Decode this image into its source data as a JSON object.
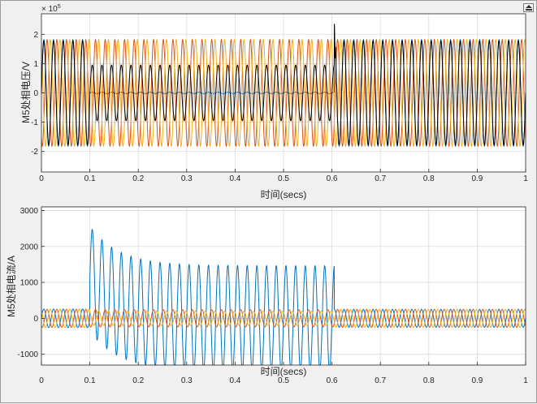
{
  "window": {
    "dock_icon": "dock-arrow-icon"
  },
  "chart_data": [
    {
      "type": "line",
      "title": "",
      "xlabel": "时间(secs)",
      "ylabel": "M5处相电压/V",
      "exponent_label": "×10^5",
      "exponent_base": "× 10",
      "exponent_power": "5",
      "xlim": [
        0,
        1
      ],
      "ylim": [
        -2.7,
        2.7
      ],
      "xticks": [
        0,
        0.1,
        0.2,
        0.3,
        0.4,
        0.5,
        0.6,
        0.7,
        0.8,
        0.9,
        1
      ],
      "yticks": [
        -2,
        -1,
        0,
        1,
        2
      ],
      "grid": true,
      "frequency_hz": 50,
      "fault_start": 0.1,
      "fault_clear": 0.605,
      "series": [
        {
          "color": "#0072bd",
          "phase_deg": 0,
          "amplitude_before": 1.82,
          "amplitude_during": 0.03,
          "amplitude_after": 1.82
        },
        {
          "color": "#d95319",
          "phase_deg": -120,
          "amplitude_before": 1.82,
          "amplitude_during": 1.82,
          "amplitude_after": 1.82
        },
        {
          "color": "#edb120",
          "phase_deg": 120,
          "amplitude_before": 1.82,
          "amplitude_during": 1.82,
          "amplitude_after": 1.82
        },
        {
          "color": "#000000",
          "phase_deg": 0,
          "amplitude_before": 1.78,
          "amplitude_during": 0.95,
          "amplitude_after": 1.78
        }
      ],
      "annotations": {
        "transient_peak": 2.4,
        "transient_dip": -2.2
      }
    },
    {
      "type": "line",
      "title": "",
      "xlabel": "时间(secs)",
      "ylabel": "M5处相电流/A",
      "xlim": [
        0,
        1
      ],
      "ylim": [
        -1300,
        3100
      ],
      "xticks": [
        0,
        0.1,
        0.2,
        0.3,
        0.4,
        0.5,
        0.6,
        0.7,
        0.8,
        0.9,
        1
      ],
      "yticks": [
        -1000,
        0,
        1000,
        2000,
        3000
      ],
      "grid": true,
      "frequency_hz": 50,
      "fault_start": 0.1,
      "fault_clear": 0.605,
      "series": [
        {
          "color": "#0072bd",
          "phase_deg": 0,
          "amplitude_before": 260,
          "fault_steady_amplitude": 1460,
          "fault_offset": 1100,
          "fault_peak": 2560,
          "fault_trough": -1400,
          "amplitude_after": 250
        },
        {
          "color": "#d95319",
          "phase_deg": -120,
          "amplitude_before": 250,
          "amplitude_during": 240,
          "amplitude_after": 250
        },
        {
          "color": "#edb120",
          "phase_deg": 120,
          "amplitude_before": 260,
          "amplitude_during": 200,
          "amplitude_after": 250
        }
      ]
    }
  ]
}
